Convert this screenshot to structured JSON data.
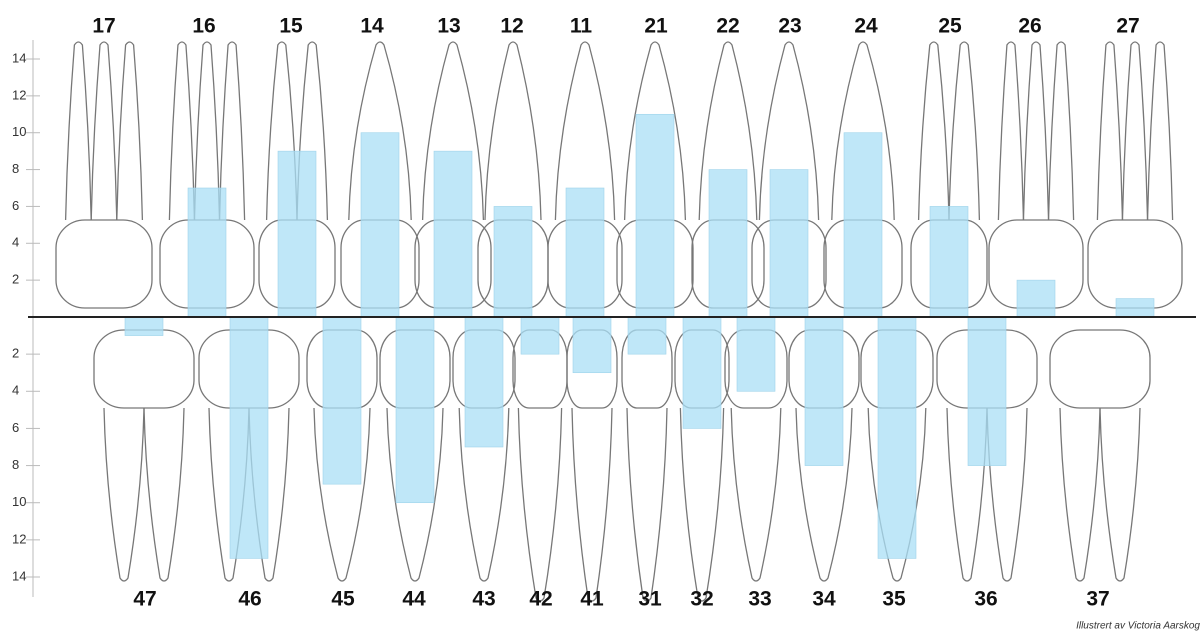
{
  "chart_data": [
    {
      "type": "bar",
      "color": "#aadff5",
      "categories": [
        "17",
        "16",
        "15",
        "14",
        "13",
        "12",
        "11",
        "21",
        "22",
        "23",
        "24",
        "25",
        "26",
        "27"
      ],
      "values": [
        null,
        7,
        9,
        10,
        9,
        6,
        7,
        11,
        8,
        8,
        10,
        6,
        2,
        1
      ],
      "ylim": [
        0,
        14
      ],
      "yticks": [
        2,
        4,
        6,
        8,
        10,
        12,
        14
      ]
    },
    {
      "type": "bar",
      "color": "#aadff5",
      "categories": [
        "47",
        "46",
        "45",
        "44",
        "43",
        "42",
        "41",
        "31",
        "32",
        "33",
        "34",
        "35",
        "36",
        "37"
      ],
      "values": [
        1,
        13,
        9,
        10,
        7,
        2,
        3,
        2,
        6,
        4,
        8,
        13,
        8,
        null
      ],
      "ylim": [
        0,
        14
      ],
      "yticks": [
        2,
        4,
        6,
        8,
        10,
        12,
        14
      ]
    }
  ],
  "credit": "Illustrert av Victoria Aarskog"
}
